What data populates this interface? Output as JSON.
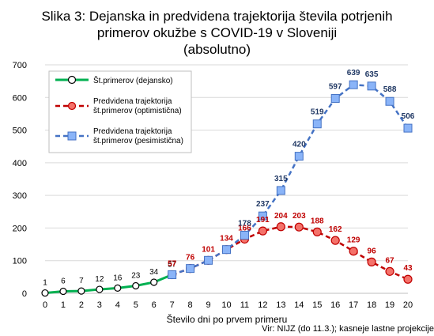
{
  "chart_data": {
    "type": "line",
    "title": "Slika 3: Dejanska in predvidena trajektorija števila potrjenih primerov okužbe s COVID-19  v Sloveniji (absolutno)",
    "title_lines": [
      "Slika 3: Dejanska in predvidena trajektorija števila potrjenih",
      "primerov okužbe s COVID-19  v Sloveniji",
      "(absolutno)"
    ],
    "xlabel": "Število dni po prvem primeru",
    "ylabel": "",
    "x": [
      0,
      1,
      2,
      3,
      4,
      5,
      6,
      7,
      8,
      9,
      10,
      11,
      12,
      13,
      14,
      15,
      16,
      17,
      18,
      19,
      20
    ],
    "xlim": [
      0,
      20
    ],
    "ylim": [
      0,
      700
    ],
    "yticks": [
      0,
      100,
      200,
      300,
      400,
      500,
      600,
      700
    ],
    "grid": true,
    "legend_position": "top-left",
    "series": [
      {
        "name": "Št.primerov (dejansko)",
        "color": "#00b050",
        "line_style": "solid",
        "marker": "circle",
        "marker_fill": "#ffffff",
        "marker_stroke": "#000000",
        "label_color": "#000000",
        "points": [
          [
            0,
            1
          ],
          [
            1,
            6
          ],
          [
            2,
            7
          ],
          [
            3,
            12
          ],
          [
            4,
            16
          ],
          [
            5,
            23
          ],
          [
            6,
            34
          ],
          [
            7,
            57
          ]
        ],
        "labeled_from": 0
      },
      {
        "name": "Predvidena trajektorija št.primerov (optimistična)",
        "legend_lines": [
          "Predvidena trajektorija",
          "št.primerov (optimistična)"
        ],
        "color": "#c00000",
        "line_style": "dashed",
        "marker": "circle",
        "marker_fill": "#f4726a",
        "marker_stroke": "#c00000",
        "label_color": "#c00000",
        "points": [
          [
            7,
            57
          ],
          [
            8,
            76
          ],
          [
            9,
            101
          ],
          [
            10,
            134
          ],
          [
            11,
            166
          ],
          [
            12,
            191
          ],
          [
            13,
            204
          ],
          [
            14,
            203
          ],
          [
            15,
            188
          ],
          [
            16,
            162
          ],
          [
            17,
            129
          ],
          [
            18,
            96
          ],
          [
            19,
            67
          ],
          [
            20,
            43
          ]
        ],
        "labeled_from": 7
      },
      {
        "name": "Predvidena trajektorija št.primerov (pesimistična)",
        "legend_lines": [
          "Predvidena trajektorija",
          "št.primerov (pesimistična)"
        ],
        "color": "#4472c4",
        "line_style": "dashed",
        "marker": "square",
        "marker_fill": "#8ab4f8",
        "marker_stroke": "#4472c4",
        "label_color": "#203864",
        "points": [
          [
            7,
            57
          ],
          [
            8,
            76
          ],
          [
            9,
            101
          ],
          [
            10,
            134
          ],
          [
            11,
            178
          ],
          [
            12,
            237
          ],
          [
            13,
            315
          ],
          [
            14,
            420
          ],
          [
            15,
            519
          ],
          [
            16,
            597
          ],
          [
            17,
            639
          ],
          [
            18,
            635
          ],
          [
            19,
            588
          ],
          [
            20,
            506
          ]
        ],
        "labeled_from": 11
      }
    ],
    "source": "Vir: NIJZ (do 11.3.); kasneje lastne projekcije"
  }
}
